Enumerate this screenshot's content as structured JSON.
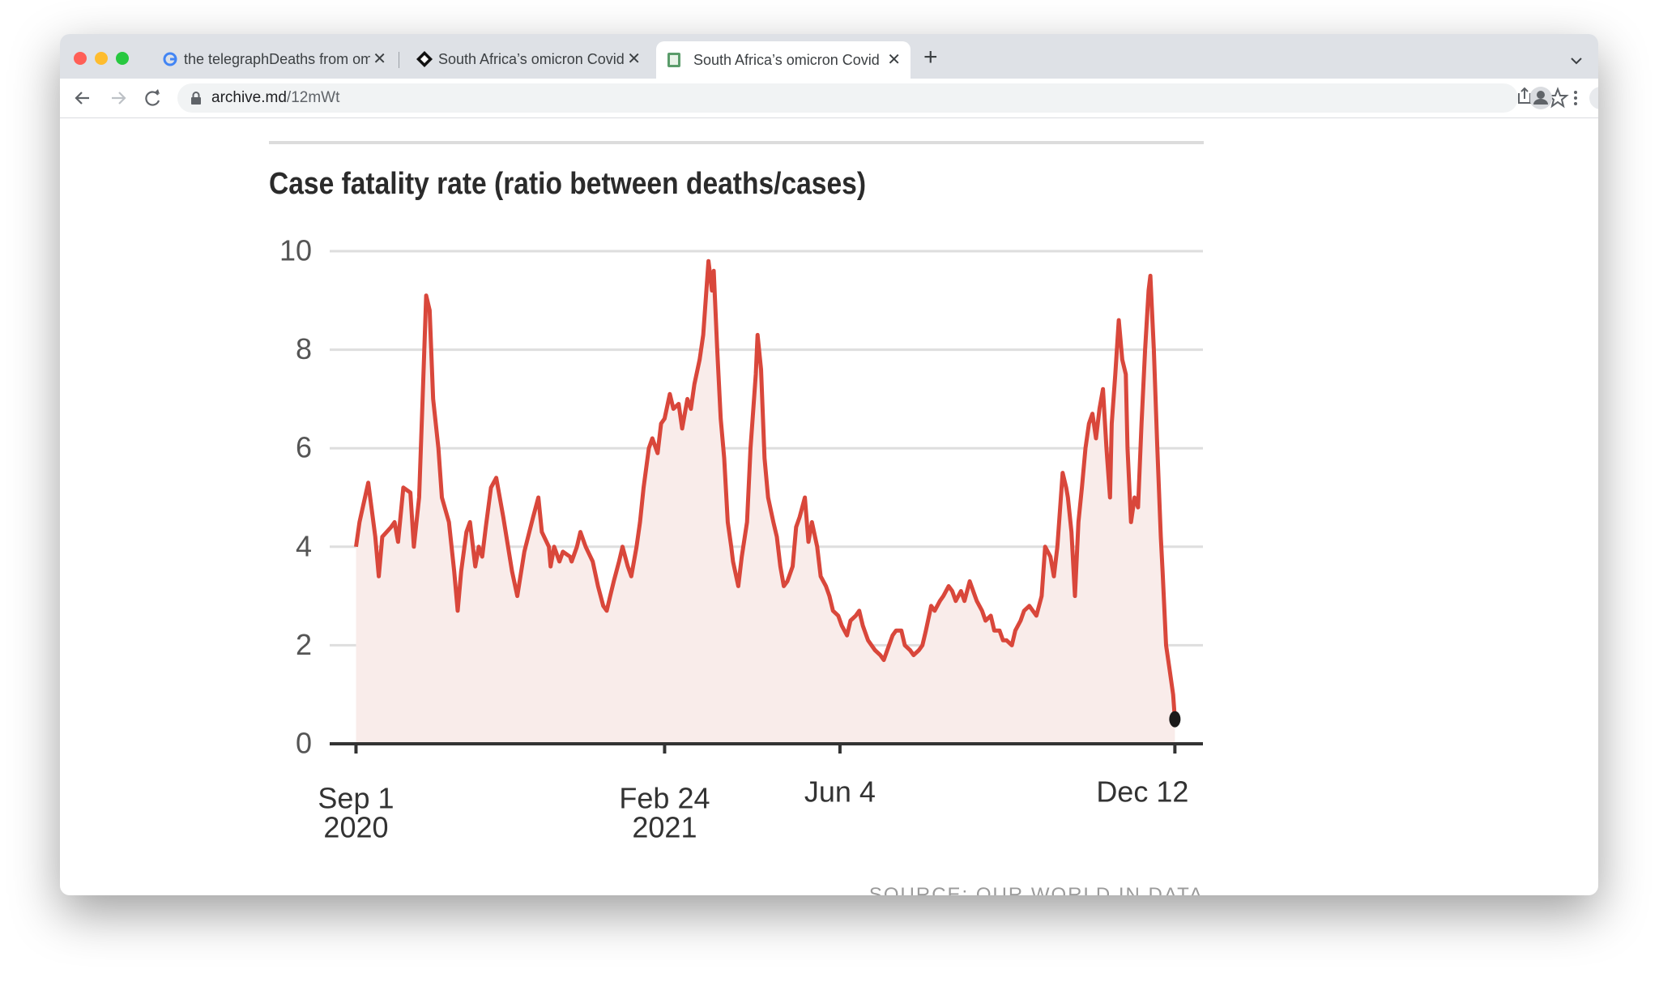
{
  "browser": {
    "tabs": [
      "the telegraphDeaths from omic",
      "South Africa’s omicron Covid",
      "South Africa’s omicron Covid"
    ],
    "url_host": "archive.md",
    "url_path": "/12mWt"
  },
  "chart_data": {
    "type": "line",
    "title": "Case fatality rate (ratio between deaths/cases)",
    "source": "SOURCE: OUR WORLD IN DATA",
    "color": "#d9473b",
    "area_color": "#f9ecea",
    "grid": true,
    "x": [
      "2020-09-01",
      "2020-09-03",
      "2020-09-08",
      "2020-09-12",
      "2020-09-14",
      "2020-09-16",
      "2020-09-21",
      "2020-09-23",
      "2020-09-25",
      "2020-09-28",
      "2020-10-02",
      "2020-10-04",
      "2020-10-07",
      "2020-10-09",
      "2020-10-11",
      "2020-10-13",
      "2020-10-15",
      "2020-10-18",
      "2020-10-20",
      "2020-10-24",
      "2020-10-27",
      "2020-10-29",
      "2020-10-31",
      "2020-11-03",
      "2020-11-05",
      "2020-11-08",
      "2020-11-10",
      "2020-11-12",
      "2020-11-14",
      "2020-11-17",
      "2020-11-20",
      "2020-11-24",
      "2020-11-29",
      "2020-12-02",
      "2020-12-06",
      "2020-12-11",
      "2020-12-14",
      "2020-12-16",
      "2020-12-20",
      "2020-12-21",
      "2020-12-23",
      "2020-12-26",
      "2020-12-28",
      "2021-01-01",
      "2021-01-02",
      "2021-01-05",
      "2021-01-07",
      "2021-01-10",
      "2021-01-14",
      "2021-01-17",
      "2021-01-20",
      "2021-01-22",
      "2021-01-24",
      "2021-01-26",
      "2021-01-29",
      "2021-01-31",
      "2021-02-03",
      "2021-02-05",
      "2021-02-08",
      "2021-02-10",
      "2021-02-12",
      "2021-02-15",
      "2021-02-17",
      "2021-02-20",
      "2021-02-22",
      "2021-02-24",
      "2021-02-27",
      "2021-03-01",
      "2021-03-04",
      "2021-03-06",
      "2021-03-09",
      "2021-03-11",
      "2021-03-13",
      "2021-03-16",
      "2021-03-18",
      "2021-03-21",
      "2021-03-23",
      "2021-03-24",
      "2021-03-26",
      "2021-03-28",
      "2021-03-30",
      "2021-04-01",
      "2021-04-03",
      "2021-04-04",
      "2021-04-07",
      "2021-04-09",
      "2021-04-12",
      "2021-04-14",
      "2021-04-17",
      "2021-04-18",
      "2021-04-20",
      "2021-04-22",
      "2021-04-24",
      "2021-04-27",
      "2021-04-29",
      "2021-05-01",
      "2021-05-03",
      "2021-05-05",
      "2021-05-08",
      "2021-05-10",
      "2021-05-12",
      "2021-05-15",
      "2021-05-17",
      "2021-05-19",
      "2021-05-22",
      "2021-05-24",
      "2021-05-27",
      "2021-05-29",
      "2021-05-31",
      "2021-06-03",
      "2021-06-05",
      "2021-06-08",
      "2021-06-10",
      "2021-06-13",
      "2021-06-15",
      "2021-06-17",
      "2021-06-20",
      "2021-06-22",
      "2021-06-24",
      "2021-06-27",
      "2021-06-29",
      "2021-07-02",
      "2021-07-04",
      "2021-07-06",
      "2021-07-09",
      "2021-07-11",
      "2021-07-14",
      "2021-07-16",
      "2021-07-19",
      "2021-07-21",
      "2021-07-23",
      "2021-07-26",
      "2021-07-28",
      "2021-07-31",
      "2021-08-02",
      "2021-08-05",
      "2021-08-07",
      "2021-08-09",
      "2021-08-12",
      "2021-08-14",
      "2021-08-17",
      "2021-08-19",
      "2021-08-21",
      "2021-08-24",
      "2021-08-26",
      "2021-08-29",
      "2021-08-31",
      "2021-09-03",
      "2021-09-05",
      "2021-09-07",
      "2021-09-10",
      "2021-09-12",
      "2021-09-15",
      "2021-09-17",
      "2021-09-20",
      "2021-09-22",
      "2021-09-24",
      "2021-09-27",
      "2021-09-29",
      "2021-10-02",
      "2021-10-04",
      "2021-10-06",
      "2021-10-09",
      "2021-10-11",
      "2021-10-12",
      "2021-10-14",
      "2021-10-16",
      "2021-10-18",
      "2021-10-20",
      "2021-10-22",
      "2021-10-24",
      "2021-10-26",
      "2021-10-28",
      "2021-10-30",
      "2021-11-01",
      "2021-11-03",
      "2021-11-05",
      "2021-11-06",
      "2021-11-08",
      "2021-11-10",
      "2021-11-12",
      "2021-11-14",
      "2021-11-15",
      "2021-11-17",
      "2021-11-19",
      "2021-11-21",
      "2021-11-23",
      "2021-11-25",
      "2021-11-27",
      "2021-11-28",
      "2021-11-30",
      "2021-12-02",
      "2021-12-04",
      "2021-12-05",
      "2021-12-07",
      "2021-12-09",
      "2021-12-11",
      "2021-12-12"
    ],
    "values": [
      4.0,
      4.5,
      5.3,
      4.2,
      3.4,
      4.2,
      4.4,
      4.5,
      4.1,
      5.2,
      5.1,
      4.0,
      5.0,
      7.0,
      9.1,
      8.8,
      7.0,
      6.0,
      5.0,
      4.5,
      3.5,
      2.7,
      3.5,
      4.3,
      4.5,
      3.6,
      4.0,
      3.8,
      4.4,
      5.2,
      5.4,
      4.6,
      3.5,
      3.0,
      3.9,
      4.6,
      5.0,
      4.3,
      4.0,
      3.6,
      4.0,
      3.7,
      3.9,
      3.8,
      3.7,
      4.0,
      4.3,
      4.0,
      3.7,
      3.2,
      2.8,
      2.7,
      3.0,
      3.3,
      3.7,
      4.0,
      3.6,
      3.4,
      4.0,
      4.5,
      5.2,
      6.0,
      6.2,
      5.9,
      6.5,
      6.6,
      7.1,
      6.8,
      6.9,
      6.4,
      7.0,
      6.8,
      7.3,
      7.8,
      8.3,
      9.8,
      9.2,
      9.6,
      8.0,
      6.6,
      5.8,
      4.5,
      4.0,
      3.7,
      3.2,
      3.8,
      4.5,
      6.0,
      7.5,
      8.3,
      7.6,
      5.8,
      5.0,
      4.5,
      4.2,
      3.6,
      3.2,
      3.3,
      3.6,
      4.4,
      4.6,
      5.0,
      4.1,
      4.5,
      4.0,
      3.4,
      3.2,
      3.0,
      2.7,
      2.6,
      2.4,
      2.2,
      2.5,
      2.6,
      2.7,
      2.4,
      2.1,
      2.0,
      1.9,
      1.8,
      1.7,
      2.0,
      2.2,
      2.3,
      2.3,
      2.0,
      1.9,
      1.8,
      1.9,
      2.0,
      2.3,
      2.8,
      2.7,
      2.9,
      3.0,
      3.2,
      3.1,
      2.9,
      3.1,
      2.9,
      3.3,
      3.1,
      2.9,
      2.7,
      2.5,
      2.6,
      2.3,
      2.3,
      2.1,
      2.1,
      2.0,
      2.3,
      2.5,
      2.7,
      2.8,
      2.7,
      2.6,
      3.0,
      4.0,
      3.8,
      3.4,
      4.0,
      5.5,
      5.2,
      5.0,
      4.3,
      3.0,
      4.5,
      5.2,
      6.0,
      6.5,
      6.7,
      6.2,
      6.8,
      7.2,
      6.0,
      5.0,
      6.5,
      7.5,
      8.6,
      7.8,
      7.5,
      6.0,
      4.5,
      5.0,
      4.8,
      6.5,
      8.0,
      9.2,
      9.5,
      8.0,
      6.0,
      4.2,
      3.5,
      2.0,
      1.5,
      1.0,
      0.5
    ],
    "xlim": [
      "2020-08-17",
      "2021-12-28"
    ],
    "xticks": [
      {
        "value": "2020-09-01",
        "label": [
          "Sep 1",
          "2020"
        ]
      },
      {
        "value": "2021-02-24",
        "label": [
          "Feb 24",
          "2021"
        ]
      },
      {
        "value": "2021-06-04",
        "label": [
          "Jun 4"
        ]
      },
      {
        "value": "2021-12-12",
        "label": [
          "Dec 12"
        ]
      }
    ],
    "ylim": [
      0,
      10
    ],
    "yticks": [
      0,
      2,
      4,
      6,
      8,
      10
    ]
  }
}
